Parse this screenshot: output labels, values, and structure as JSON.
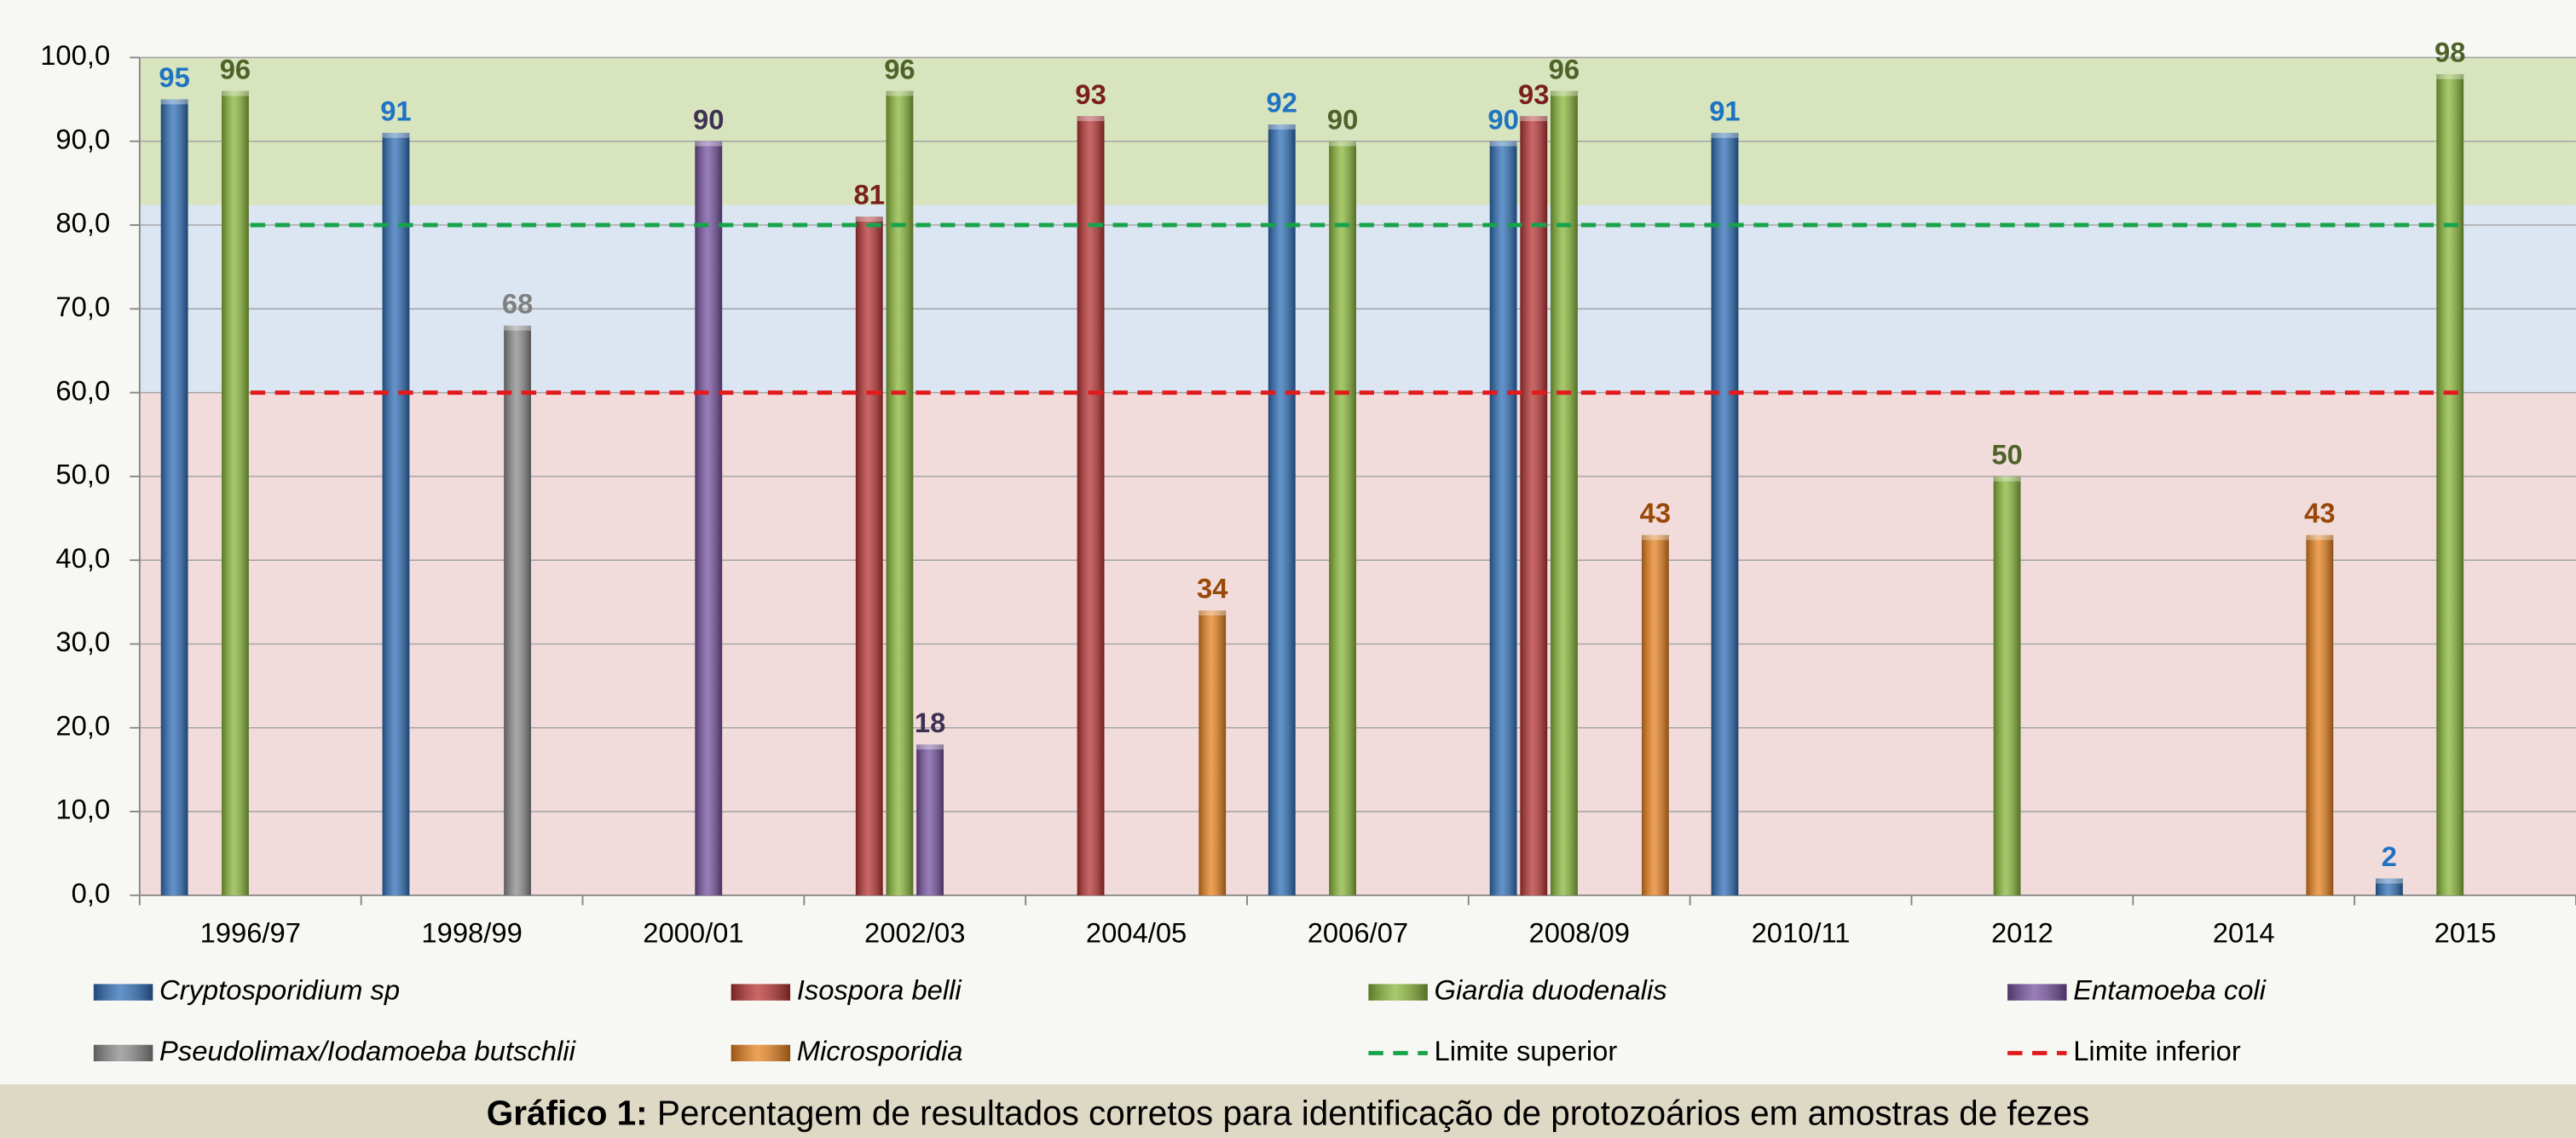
{
  "chart_data": {
    "type": "bar",
    "categories": [
      "1996/97",
      "1998/99",
      "2000/01",
      "2002/03",
      "2004/05",
      "2006/07",
      "2008/09",
      "2010/11",
      "2012",
      "2014",
      "2015"
    ],
    "series": [
      {
        "name": "Cryptosporidium sp",
        "type": "bar",
        "color": "#2f6fb8",
        "label_color": "#1f73c2",
        "values": [
          95,
          91,
          null,
          null,
          null,
          92,
          90,
          91,
          null,
          null,
          2
        ]
      },
      {
        "name": "Isospora belli",
        "type": "bar",
        "color": "#b83434",
        "label_color": "#7a1e1e",
        "values": [
          null,
          null,
          null,
          81,
          93,
          null,
          93,
          null,
          null,
          null,
          null
        ]
      },
      {
        "name": "Giardia duodenalis",
        "type": "bar",
        "color": "#8ab83a",
        "label_color": "#4f6228",
        "values": [
          96,
          null,
          null,
          96,
          null,
          90,
          96,
          null,
          50,
          null,
          98
        ]
      },
      {
        "name": "Entamoeba coli",
        "type": "bar",
        "color": "#7652a0",
        "label_color": "#3f3151",
        "values": [
          null,
          null,
          90,
          18,
          null,
          null,
          null,
          null,
          null,
          null,
          null
        ]
      },
      {
        "name": "Pseudolimax/Iodamoeba butschlii",
        "type": "bar",
        "color": "#8c8c8c",
        "label_color": "#7f7f7f",
        "values": [
          null,
          68,
          null,
          null,
          null,
          null,
          null,
          null,
          null,
          null,
          null
        ]
      },
      {
        "name": "Microsporidia",
        "type": "bar",
        "color": "#e8821e",
        "label_color": "#984807",
        "values": [
          null,
          null,
          null,
          null,
          34,
          null,
          43,
          null,
          null,
          43,
          null
        ]
      },
      {
        "name": "Limite superior",
        "type": "line",
        "color": "#16a34a",
        "values": [
          80,
          80,
          80,
          80,
          80,
          80,
          80,
          80,
          80,
          80,
          80
        ]
      },
      {
        "name": "Limite inferior",
        "type": "line",
        "color": "#e31a1c",
        "values": [
          60,
          60,
          60,
          60,
          60,
          60,
          60,
          60,
          60,
          60,
          60
        ]
      }
    ],
    "bands": [
      {
        "from": 0,
        "to": 60,
        "color": "#f2dcdb"
      },
      {
        "from": 60,
        "to": 82.4,
        "color": "#dce6f2"
      },
      {
        "from": 82.4,
        "to": 100,
        "color": "#d7e4bd"
      }
    ],
    "ylim": [
      0,
      100
    ],
    "yticks": [
      {
        "value": 0,
        "label": "0,0"
      },
      {
        "value": 10,
        "label": "10,0"
      },
      {
        "value": 20,
        "label": "20,0"
      },
      {
        "value": 30,
        "label": "30,0"
      },
      {
        "value": 40,
        "label": "40,0"
      },
      {
        "value": 50,
        "label": "50,0"
      },
      {
        "value": 60,
        "label": "60,0"
      },
      {
        "value": 70,
        "label": "70,0"
      },
      {
        "value": 80,
        "label": "80,0"
      },
      {
        "value": 90,
        "label": "90,0"
      },
      {
        "value": 100,
        "label": "100,0"
      }
    ],
    "grid": true,
    "legend": "bottom",
    "caption_label": "Gráfico 1:",
    "caption_text": "Percentagem de resultados corretos para identificação de protozoários em amostras de fezes"
  }
}
